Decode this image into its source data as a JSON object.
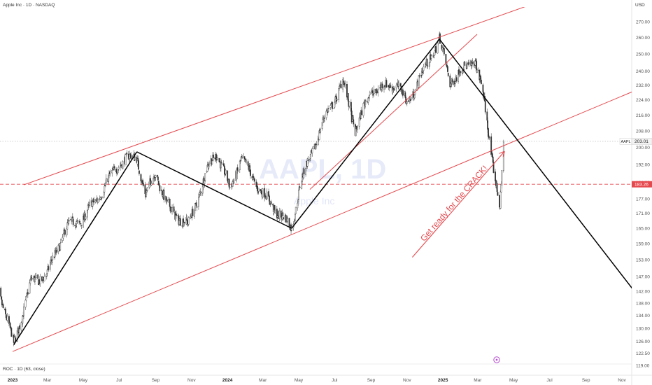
{
  "header": {
    "symbol_title": "Apple Inc · 1D · NASDAQ",
    "currency": "USD"
  },
  "watermark": {
    "ticker": "AAPL, 1D",
    "name": "Apple Inc"
  },
  "price_labels": {
    "last": {
      "label": "AAPL",
      "value": "203.01",
      "price": 203.01
    },
    "level": {
      "value": "183.26",
      "price": 183.26
    }
  },
  "annotation": {
    "text": "Get ready for the CRACK!",
    "color": "#e5484d"
  },
  "indicator": {
    "label": "ROC · 1D (63, close)"
  },
  "colors": {
    "channel": "#e5484d",
    "pattern": "#000000",
    "candles": "#333333",
    "level": "#e5484d",
    "last_price": "#bbbbbb"
  },
  "chart_data": {
    "type": "line",
    "title": "Apple Inc · 1D · NASDAQ",
    "yaxis_scale": "log",
    "y_ticks": [
      270.0,
      260.0,
      250.0,
      240.0,
      232.0,
      224.0,
      216.0,
      208.0,
      200.0,
      192.0,
      184.0,
      177.0,
      171.0,
      165.0,
      159.0,
      153.0,
      147.0,
      142.0,
      138.0,
      134.0,
      130.0,
      126.0,
      122.5,
      119.0,
      115.6
    ],
    "ylim": [
      115.6,
      276
    ],
    "x_ticks": [
      {
        "label": "2023",
        "date": "2023-01-01",
        "bold": true
      },
      {
        "label": "Mar",
        "date": "2023-03-01"
      },
      {
        "label": "May",
        "date": "2023-05-01"
      },
      {
        "label": "Jul",
        "date": "2023-07-01"
      },
      {
        "label": "Sep",
        "date": "2023-09-01"
      },
      {
        "label": "Nov",
        "date": "2023-11-01"
      },
      {
        "label": "2024",
        "date": "2024-01-01",
        "bold": true
      },
      {
        "label": "Mar",
        "date": "2024-03-01"
      },
      {
        "label": "May",
        "date": "2024-05-01"
      },
      {
        "label": "Jul",
        "date": "2024-07-01"
      },
      {
        "label": "Sep",
        "date": "2024-09-01"
      },
      {
        "label": "Nov",
        "date": "2024-11-01"
      },
      {
        "label": "2025",
        "date": "2025-01-01",
        "bold": true
      },
      {
        "label": "Mar",
        "date": "2025-03-01"
      },
      {
        "label": "May",
        "date": "2025-05-01"
      },
      {
        "label": "Jul",
        "date": "2025-07-01"
      },
      {
        "label": "Sep",
        "date": "2025-09-01"
      },
      {
        "label": "Nov",
        "date": "2025-11-01"
      }
    ],
    "series": [
      {
        "name": "AAPL",
        "points": [
          {
            "date": "2022-12-01",
            "close": 148
          },
          {
            "date": "2022-12-15",
            "close": 138
          },
          {
            "date": "2023-01-03",
            "close": 125
          },
          {
            "date": "2023-02-01",
            "close": 145
          },
          {
            "date": "2023-03-01",
            "close": 148
          },
          {
            "date": "2023-04-01",
            "close": 165
          },
          {
            "date": "2023-05-01",
            "close": 169
          },
          {
            "date": "2023-06-01",
            "close": 180
          },
          {
            "date": "2023-07-01",
            "close": 193
          },
          {
            "date": "2023-07-31",
            "close": 196
          },
          {
            "date": "2023-08-15",
            "close": 178
          },
          {
            "date": "2023-09-01",
            "close": 189
          },
          {
            "date": "2023-09-20",
            "close": 174
          },
          {
            "date": "2023-10-26",
            "close": 166
          },
          {
            "date": "2023-12-01",
            "close": 192
          },
          {
            "date": "2023-12-14",
            "close": 198
          },
          {
            "date": "2024-01-05",
            "close": 181
          },
          {
            "date": "2024-01-24",
            "close": 195
          },
          {
            "date": "2024-03-01",
            "close": 179
          },
          {
            "date": "2024-04-19",
            "close": 165
          },
          {
            "date": "2024-05-03",
            "close": 183
          },
          {
            "date": "2024-06-12",
            "close": 213
          },
          {
            "date": "2024-07-15",
            "close": 234
          },
          {
            "date": "2024-08-05",
            "close": 209
          },
          {
            "date": "2024-09-01",
            "close": 229
          },
          {
            "date": "2024-10-15",
            "close": 233
          },
          {
            "date": "2024-11-01",
            "close": 222
          },
          {
            "date": "2024-12-26",
            "close": 259
          },
          {
            "date": "2025-01-13",
            "close": 234
          },
          {
            "date": "2025-02-24",
            "close": 247
          },
          {
            "date": "2025-03-10",
            "close": 227
          },
          {
            "date": "2025-04-08",
            "close": 172
          },
          {
            "date": "2025-04-14",
            "close": 203
          }
        ]
      }
    ],
    "channel": {
      "upper": {
        "from": {
          "date": "2023-01-20",
          "price": 183
        },
        "to": {
          "date": "2025-07-31",
          "price": 290
        }
      },
      "lower": {
        "from": {
          "date": "2023-01-01",
          "price": 123
        },
        "to": {
          "date": "2025-11-30",
          "price": 230
        }
      },
      "inner": {
        "from": {
          "date": "2024-05-20",
          "price": 181
        },
        "to": {
          "date": "2025-02-28",
          "price": 262
        }
      }
    },
    "pattern_path": [
      {
        "date": "2023-01-03",
        "price": 125
      },
      {
        "date": "2023-07-31",
        "price": 198
      },
      {
        "date": "2024-04-19",
        "price": 165
      },
      {
        "date": "2024-12-26",
        "price": 259
      },
      {
        "date": "2025-11-30",
        "price": 140
      }
    ],
    "annotation_arrow": {
      "from": {
        "date": "2024-11-10",
        "price": 154
      },
      "to": {
        "date": "2025-04-15",
        "price": 198
      }
    }
  }
}
